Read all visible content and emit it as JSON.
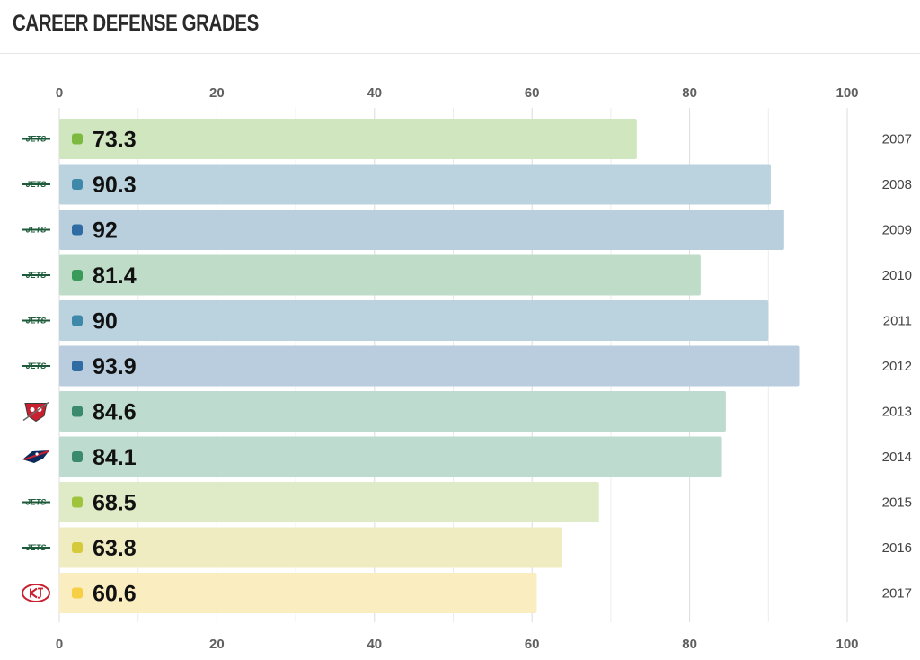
{
  "title": "CAREER DEFENSE GRADES",
  "chart_data": {
    "type": "bar",
    "orientation": "horizontal",
    "categories": [
      "2007",
      "2008",
      "2009",
      "2010",
      "2011",
      "2012",
      "2013",
      "2014",
      "2015",
      "2016",
      "2017"
    ],
    "values": [
      73.3,
      90.3,
      92,
      81.4,
      90,
      93.9,
      84.6,
      84.1,
      68.5,
      63.8,
      60.6
    ],
    "value_labels": [
      "73.3",
      "90.3",
      "92",
      "81.4",
      "90",
      "93.9",
      "84.6",
      "84.1",
      "68.5",
      "63.8",
      "60.6"
    ],
    "teams": [
      "jets",
      "jets",
      "jets",
      "jets",
      "jets",
      "jets",
      "buccaneers",
      "patriots",
      "jets",
      "jets",
      "chiefs"
    ],
    "team_logo_text": {
      "jets": "JETS"
    },
    "colors": [
      "#7cb93f",
      "#3e88aa",
      "#2f6ca3",
      "#3a9a5a",
      "#3e88aa",
      "#2f6ca3",
      "#3a8a6e",
      "#3a8a6e",
      "#9dc43a",
      "#d6c93c",
      "#f7cf45"
    ],
    "bar_colors": [
      "#cfe6bf",
      "#bad3df",
      "#b9cfde",
      "#bedcc7",
      "#bad3df",
      "#b9cddf",
      "#bedbcf",
      "#bedbcf",
      "#dfeac6",
      "#f0ecc1",
      "#faedc0"
    ],
    "xlim": [
      0,
      100
    ],
    "xticks": [
      0,
      20,
      40,
      60,
      80,
      100
    ],
    "xticks_top": true,
    "xticks_bottom": true,
    "grid": true,
    "xlabel": "",
    "ylabel": ""
  }
}
